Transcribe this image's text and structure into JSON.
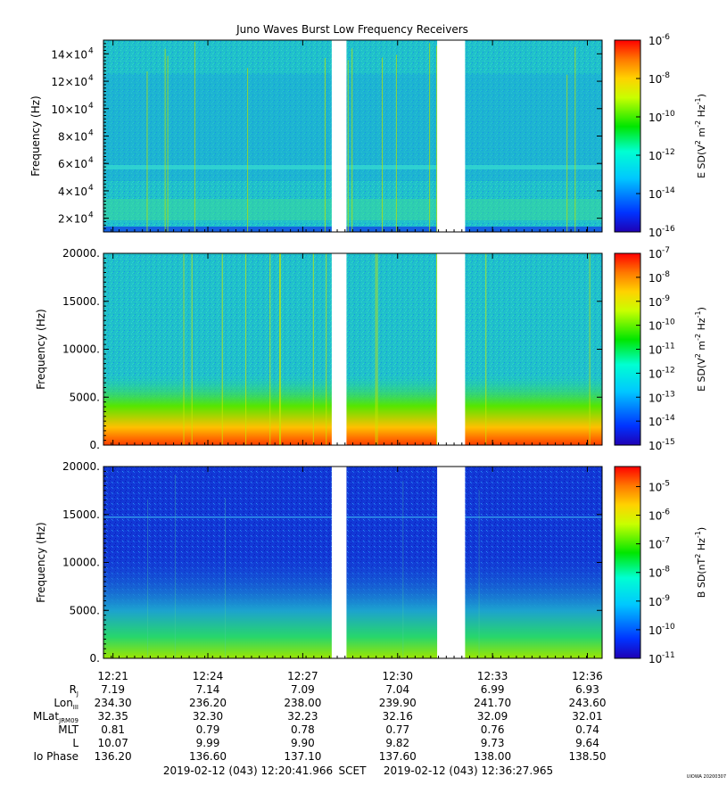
{
  "title": "Juno Waves Burst Low Frequency Receivers",
  "colors": {
    "background_teal": "#1fc2c8",
    "background_blue": "#1440d8",
    "gap": "#ffffff",
    "colormap": [
      "#1f00b4",
      "#0033ff",
      "#00c8ff",
      "#00ffd2",
      "#00e600",
      "#c8ff00",
      "#ffd200",
      "#ff7800",
      "#ff0000"
    ]
  },
  "chart_data": [
    {
      "type": "heatmap",
      "name": "panel-1",
      "ylabel": "Frequency (Hz)",
      "yticks": [
        {
          "value": 20000,
          "mantissa": "2×10",
          "exp": "4"
        },
        {
          "value": 40000,
          "mantissa": "4×10",
          "exp": "4"
        },
        {
          "value": 60000,
          "mantissa": "6×10",
          "exp": "4"
        },
        {
          "value": 80000,
          "mantissa": "8×10",
          "exp": "4"
        },
        {
          "value": 100000,
          "mantissa": "10×10",
          "exp": "4"
        },
        {
          "value": 120000,
          "mantissa": "12×10",
          "exp": "4"
        },
        {
          "value": 140000,
          "mantissa": "14×10",
          "exp": "4"
        }
      ],
      "ylim": [
        10000,
        150000
      ],
      "background": "teal",
      "colorbar": {
        "label": "E SD(V² m⁻² Hz⁻¹)",
        "label_base": "E SD(V",
        "label_unit_1": "m",
        "label_unit_2": "Hz",
        "log_range": [
          -16,
          -6
        ],
        "ticks": [
          {
            "exp": "-6",
            "value": -6
          },
          {
            "exp": "-8",
            "value": -8
          },
          {
            "exp": "-10",
            "value": -10
          },
          {
            "exp": "-12",
            "value": -12
          },
          {
            "exp": "-14",
            "value": -14
          },
          {
            "exp": "-16",
            "value": -16
          }
        ]
      }
    },
    {
      "type": "heatmap",
      "name": "panel-2",
      "ylabel": "Frequency (Hz)",
      "yticks": [
        {
          "value": 0,
          "label": "0."
        },
        {
          "value": 5000,
          "label": "5000."
        },
        {
          "value": 10000,
          "label": "10000."
        },
        {
          "value": 15000,
          "label": "15000."
        },
        {
          "value": 20000,
          "label": "20000."
        }
      ],
      "ylim": [
        0,
        20000
      ],
      "background": "teal",
      "colorbar": {
        "label": "E SD(V² m⁻² Hz⁻¹)",
        "label_base": "E SD(V",
        "label_unit_1": "m",
        "label_unit_2": "Hz",
        "log_range": [
          -15,
          -7
        ],
        "ticks": [
          {
            "exp": "-7",
            "value": -7
          },
          {
            "exp": "-8",
            "value": -8
          },
          {
            "exp": "-9",
            "value": -9
          },
          {
            "exp": "-10",
            "value": -10
          },
          {
            "exp": "-11",
            "value": -11
          },
          {
            "exp": "-12",
            "value": -12
          },
          {
            "exp": "-13",
            "value": -13
          },
          {
            "exp": "-14",
            "value": -14
          },
          {
            "exp": "-15",
            "value": -15
          }
        ]
      }
    },
    {
      "type": "heatmap",
      "name": "panel-3",
      "ylabel": "Frequency (Hz)",
      "yticks": [
        {
          "value": 0,
          "label": "0."
        },
        {
          "value": 5000,
          "label": "5000."
        },
        {
          "value": 10000,
          "label": "10000."
        },
        {
          "value": 15000,
          "label": "15000."
        },
        {
          "value": 20000,
          "label": "20000."
        }
      ],
      "ylim": [
        0,
        20000
      ],
      "background": "blue",
      "colorbar": {
        "label": "B SD(nT² Hz⁻¹)",
        "label_base": "B SD(nT",
        "label_unit_1": "",
        "label_unit_2": "Hz",
        "log_range": [
          -11,
          -4.3
        ],
        "ticks": [
          {
            "exp": "-5",
            "value": -5
          },
          {
            "exp": "-6",
            "value": -6
          },
          {
            "exp": "-7",
            "value": -7
          },
          {
            "exp": "-8",
            "value": -8
          },
          {
            "exp": "-9",
            "value": -9
          },
          {
            "exp": "-10",
            "value": -10
          },
          {
            "exp": "-11",
            "value": -11
          }
        ]
      }
    }
  ],
  "time_axis": {
    "range": [
      "12:20:41.966",
      "12:36:27.965"
    ],
    "ticks": [
      {
        "time": "12:21",
        "Rj": "7.19",
        "Lon": "234.30",
        "MLat": "32.35",
        "MLT": "0.81",
        "L": "10.07",
        "IoPhase": "136.20"
      },
      {
        "time": "12:24",
        "Rj": "7.14",
        "Lon": "236.20",
        "MLat": "32.30",
        "MLT": "0.79",
        "L": "9.99",
        "IoPhase": "136.60"
      },
      {
        "time": "12:27",
        "Rj": "7.09",
        "Lon": "238.00",
        "MLat": "32.23",
        "MLT": "0.78",
        "L": "9.90",
        "IoPhase": "137.10"
      },
      {
        "time": "12:30",
        "Rj": "7.04",
        "Lon": "239.90",
        "MLat": "32.16",
        "MLT": "0.77",
        "L": "9.82",
        "IoPhase": "137.60"
      },
      {
        "time": "12:33",
        "Rj": "6.99",
        "Lon": "241.70",
        "MLat": "32.09",
        "MLT": "0.76",
        "L": "9.73",
        "IoPhase": "138.00"
      },
      {
        "time": "12:36",
        "Rj": "6.93",
        "Lon": "243.60",
        "MLat": "32.01",
        "MLT": "0.74",
        "L": "9.64",
        "IoPhase": "138.50"
      }
    ],
    "data_gaps": [
      [
        "12:27:55",
        "12:28:23"
      ],
      [
        "12:31:15",
        "12:32:08"
      ]
    ]
  },
  "ephemeris_labels": {
    "Rj": "R",
    "Rj_sub": "J",
    "Lon": "Lon",
    "Lon_sub": "III",
    "MLat": "MLat",
    "MLat_sub": "JRM09",
    "MLT": "MLT",
    "L": "L",
    "IoPhase": "Io Phase"
  },
  "footer": {
    "start": "2019-02-12 (043) 12:20:41.966",
    "scet": "SCET",
    "end": "2019-02-12 (043) 12:36:27.965",
    "credit": "UIOWA 20200307"
  }
}
